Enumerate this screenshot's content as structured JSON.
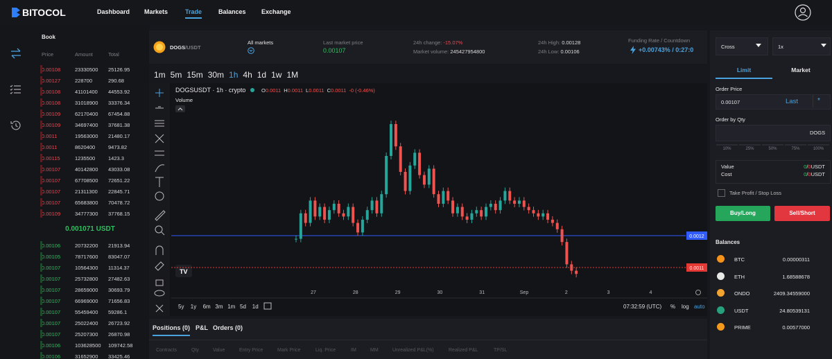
{
  "nav": {
    "logo": "BITOCOL",
    "links": [
      "Dashboard",
      "Markets",
      "Trade",
      "Balances",
      "Exchange"
    ]
  },
  "book": {
    "title": "Book",
    "headers": [
      "Price",
      "Amount",
      "Total"
    ],
    "asks": [
      [
        "0.00108",
        "23330500",
        "25126.95"
      ],
      [
        "0.00127",
        "228700",
        "290.68"
      ],
      [
        "0.00108",
        "41101400",
        "44553.92"
      ],
      [
        "0.00108",
        "31018900",
        "33376.34"
      ],
      [
        "0.00109",
        "62170400",
        "67454.88"
      ],
      [
        "0.00109",
        "34697400",
        "37681.38"
      ],
      [
        "0.0011",
        "19563000",
        "21480.17"
      ],
      [
        "0.0011",
        "8620400",
        "9473.82"
      ],
      [
        "0.00115",
        "1235500",
        "1423.3"
      ],
      [
        "0.00107",
        "40142800",
        "43033.08"
      ],
      [
        "0.00107",
        "67708500",
        "72651.22"
      ],
      [
        "0.00107",
        "21311300",
        "22845.71"
      ],
      [
        "0.00107",
        "65683800",
        "70478.72"
      ],
      [
        "0.00109",
        "34777300",
        "37768.15"
      ]
    ],
    "mid": "0.001071 USDT",
    "bids": [
      [
        "0.00106",
        "20732200",
        "21913.94"
      ],
      [
        "0.00105",
        "78717600",
        "83047.07"
      ],
      [
        "0.00107",
        "10564300",
        "11314.37"
      ],
      [
        "0.00107",
        "25732800",
        "27482.63"
      ],
      [
        "0.00107",
        "28659000",
        "30693.79"
      ],
      [
        "0.00107",
        "66969000",
        "71656.83"
      ],
      [
        "0.00107",
        "55459400",
        "59286.1"
      ],
      [
        "0.00107",
        "25022400",
        "26723.92"
      ],
      [
        "0.00107",
        "25207300",
        "26870.98"
      ],
      [
        "0.00106",
        "103628500",
        "109742.58"
      ],
      [
        "0.00106",
        "31652900",
        "33425.46"
      ]
    ]
  },
  "market": {
    "base": "DOGS",
    "quote": "/USDT",
    "all_markets": "All markets",
    "last_price_label": "Last market price",
    "last_price": "0.00107",
    "change_label": "24h change:",
    "change": "-15.07%",
    "volume_label": "Market volume:",
    "volume": "245427954800",
    "high_label": "24h High:",
    "high": "0.00128",
    "low_label": "24h Low:",
    "low": "0.00106",
    "funding_label": "Funding Rate / Countdown",
    "funding": "+0.00743% / 0:27:0"
  },
  "chart": {
    "intervals": [
      "1m",
      "5m",
      "15m",
      "30m",
      "1h",
      "4h",
      "1d",
      "1w",
      "1M"
    ],
    "symbol": "DOGSUSDT · 1h · crypto",
    "ohlc": [
      [
        "O",
        "0.0011"
      ],
      [
        "H",
        "0.0011"
      ],
      [
        "L",
        "0.0011"
      ],
      [
        "C",
        "0.0011"
      ]
    ],
    "delta": "-0 (-0.46%)",
    "volume": "Volume",
    "price_marks": [
      0.0012,
      0.0011
    ],
    "dates": [
      "27",
      "28",
      "29",
      "30",
      "31",
      "Sep",
      "2",
      "3",
      "4"
    ],
    "closes": [
      0.00119,
      0.00127,
      0.00124,
      0.00131,
      0.00126,
      0.00129,
      0.00125,
      0.00128,
      0.0013,
      0.00127,
      0.00126,
      0.00129,
      0.00124,
      0.00121,
      0.00125,
      0.00128,
      0.00131,
      0.00127,
      0.00133,
      0.00145,
      0.00155,
      0.00148,
      0.0014,
      0.00134,
      0.00142,
      0.00146,
      0.00139,
      0.00136,
      0.00141,
      0.00133,
      0.0013,
      0.00134,
      0.00131,
      0.00127,
      0.00129,
      0.00126,
      0.00125,
      0.00127,
      0.00128,
      0.00126,
      0.00129,
      0.0013,
      0.00128,
      0.00131,
      0.00134,
      0.00131,
      0.0013,
      0.00131,
      0.00129,
      0.00128,
      0.00127,
      0.00126,
      0.00127,
      0.00125,
      0.00124,
      0.00122,
      0.00118,
      0.00111,
      0.00109,
      0.00108
    ],
    "ranges": [
      "5y",
      "1y",
      "6m",
      "3m",
      "1m",
      "5d",
      "1d"
    ],
    "clock": "07:32:59 (UTC)",
    "scale_opts": [
      "%",
      "log",
      "auto"
    ]
  },
  "positions": {
    "tabs": [
      "Positions (0)",
      "P&L",
      "Orders (0)"
    ],
    "columns": [
      "Contracts",
      "Qty",
      "Value",
      "Entry Price",
      "Mark Price",
      "Liq. Price",
      "IM",
      "MM",
      "Unrealized P&L(%)",
      "Realized P&L",
      "TP/SL"
    ]
  },
  "order": {
    "margin": "Cross",
    "leverage": "1x",
    "tabs": [
      "Limit",
      "Market"
    ],
    "price_label": "Order Price",
    "price": "0.00107",
    "last": "Last",
    "qty_label": "Order by Qty",
    "qty_unit": "DOGS",
    "percents": [
      "10%",
      "25%",
      "50%",
      "75%",
      "100%"
    ],
    "value_label": "Value",
    "value": {
      "a": "0",
      "sep": "/",
      "b": "0",
      "unit": "USDT"
    },
    "cost_label": "Cost",
    "cost": {
      "a": "0",
      "sep": "/",
      "b": "0",
      "unit": "USDT"
    },
    "tpsl": "Take Profit / Stop Loss",
    "buy": "Buy/Long",
    "sell": "Sell/Short"
  },
  "balances": {
    "title": "Balances",
    "items": [
      {
        "coin": "BTC",
        "amount": "0.00000311",
        "color": "#f7931a"
      },
      {
        "coin": "ETH",
        "amount": "1.68588678",
        "color": "#e8e8e8"
      },
      {
        "coin": "ONDO",
        "amount": "2409.34559000",
        "color": "#f3a330"
      },
      {
        "coin": "USDT",
        "amount": "24.80539131",
        "color": "#26a17b"
      },
      {
        "coin": "PRIME",
        "amount": "0.00577000",
        "color": "#f39a1e"
      }
    ]
  }
}
